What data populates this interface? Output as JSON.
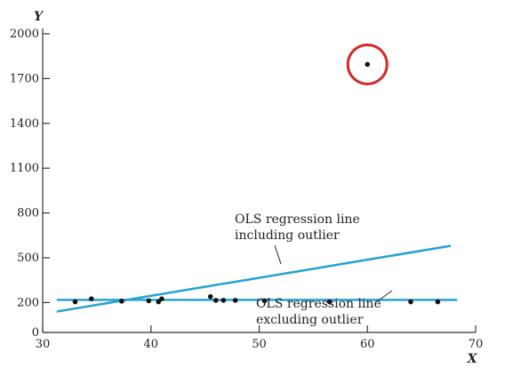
{
  "chart_data": {
    "type": "scatter",
    "title": "",
    "xlabel": "X",
    "ylabel": "Y",
    "xlim": [
      30,
      70
    ],
    "ylim": [
      0,
      2000
    ],
    "xticks": [
      30,
      40,
      50,
      60,
      70
    ],
    "yticks": [
      0,
      200,
      500,
      800,
      1100,
      1400,
      1700,
      2000
    ],
    "grid": false,
    "points": [
      {
        "x": 33,
        "y": 205
      },
      {
        "x": 34.5,
        "y": 225
      },
      {
        "x": 37.3,
        "y": 210
      },
      {
        "x": 39.8,
        "y": 212
      },
      {
        "x": 40.7,
        "y": 205
      },
      {
        "x": 41.0,
        "y": 225
      },
      {
        "x": 45.5,
        "y": 240
      },
      {
        "x": 46.0,
        "y": 215
      },
      {
        "x": 46.7,
        "y": 215
      },
      {
        "x": 47.8,
        "y": 215
      },
      {
        "x": 50.5,
        "y": 212
      },
      {
        "x": 56.5,
        "y": 205
      },
      {
        "x": 60.0,
        "y": 1795
      },
      {
        "x": 64.0,
        "y": 205
      },
      {
        "x": 66.5,
        "y": 205
      }
    ],
    "outlier": {
      "x": 60.0,
      "y": 1795,
      "highlight_color": "#d42a2a"
    },
    "lines": [
      {
        "name": "OLS regression line including outlier",
        "x": [
          31.3,
          67.7
        ],
        "y": [
          140,
          580
        ],
        "color": "#29a3d1"
      },
      {
        "name": "OLS regression line excluding outlier",
        "x": [
          31.3,
          68.3
        ],
        "y": [
          218,
          218
        ],
        "color": "#29a3d1"
      }
    ],
    "annotations": [
      {
        "id": "incl",
        "lines": [
          "OLS regression line",
          "including outlier"
        ]
      },
      {
        "id": "excl",
        "lines": [
          "OLS regression line",
          "excluding outlier"
        ]
      }
    ]
  }
}
